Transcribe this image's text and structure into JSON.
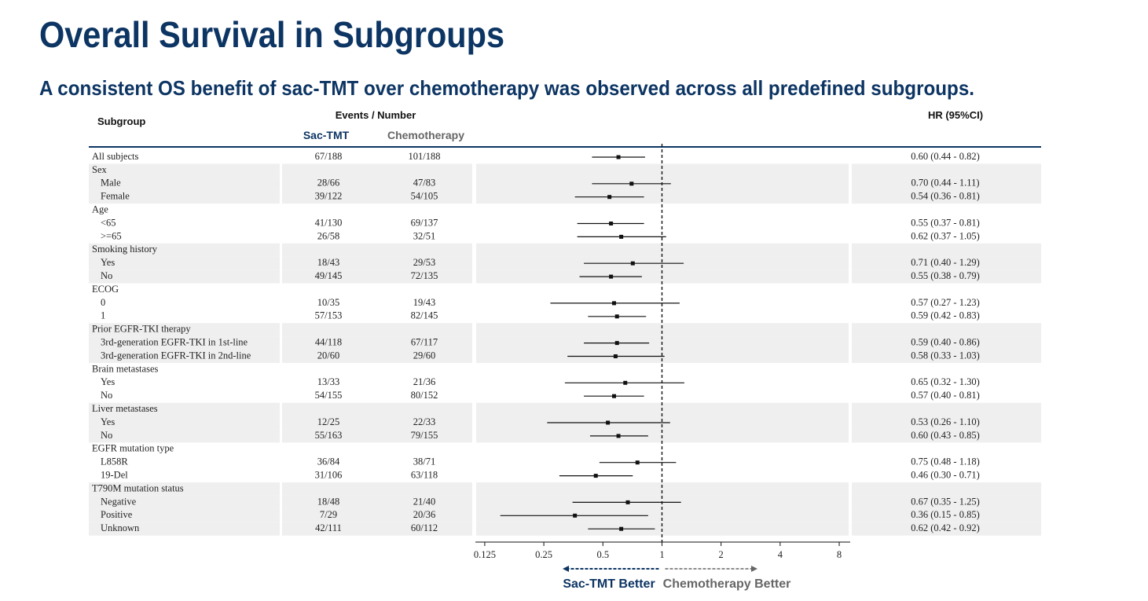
{
  "chart_data": {
    "type": "forest",
    "title": "Overall Survival in Subgroups",
    "subtitle": "A consistent OS benefit of sac-TMT over chemotherapy was observed across all predefined subgroups.",
    "headers": {
      "subgroup": "Subgroup",
      "events": "Events / Number",
      "sac": "Sac-TMT",
      "chemo": "Chemotherapy",
      "hr": "HR (95%CI)"
    },
    "categories": [
      "All subjects",
      "Sex",
      "Male",
      "Female",
      "Age",
      "<65",
      ">=65",
      "Smoking history",
      "Yes",
      "No",
      "ECOG",
      "0",
      "1",
      "Prior EGFR-TKI therapy",
      "3rd-generation EGFR-TKI in 1st-line",
      "3rd-generation EGFR-TKI in 2nd-line",
      "Brain metastases",
      "Yes",
      "No",
      "Liver metastases",
      "Yes",
      "No",
      "EGFR mutation type",
      "L858R",
      "19-Del",
      "T790M mutation status",
      "Negative",
      "Positive",
      "Unknown"
    ],
    "levels": [
      0,
      0,
      1,
      1,
      0,
      1,
      1,
      0,
      1,
      1,
      0,
      1,
      1,
      0,
      1,
      1,
      0,
      1,
      1,
      0,
      1,
      1,
      0,
      1,
      1,
      0,
      1,
      1,
      1
    ],
    "sac_events": [
      "67/188",
      null,
      "28/66",
      "39/122",
      null,
      "41/130",
      "26/58",
      null,
      "18/43",
      "49/145",
      null,
      "10/35",
      "57/153",
      null,
      "44/118",
      "20/60",
      null,
      "13/33",
      "54/155",
      null,
      "12/25",
      "55/163",
      null,
      "36/84",
      "31/106",
      null,
      "18/48",
      "7/29",
      "42/111"
    ],
    "chemo_events": [
      "101/188",
      null,
      "47/83",
      "54/105",
      null,
      "69/137",
      "32/51",
      null,
      "29/53",
      "72/135",
      null,
      "19/43",
      "82/145",
      null,
      "67/117",
      "29/60",
      null,
      "21/36",
      "80/152",
      null,
      "22/33",
      "79/155",
      null,
      "38/71",
      "63/118",
      null,
      "21/40",
      "20/36",
      "60/112"
    ],
    "values": [
      0.6,
      null,
      0.7,
      0.54,
      null,
      0.55,
      0.62,
      null,
      0.71,
      0.55,
      null,
      0.57,
      0.59,
      null,
      0.59,
      0.58,
      null,
      0.65,
      0.57,
      null,
      0.53,
      0.6,
      null,
      0.75,
      0.46,
      null,
      0.67,
      0.36,
      0.62
    ],
    "lower": [
      0.44,
      null,
      0.44,
      0.36,
      null,
      0.37,
      0.37,
      null,
      0.4,
      0.38,
      null,
      0.27,
      0.42,
      null,
      0.4,
      0.33,
      null,
      0.32,
      0.4,
      null,
      0.26,
      0.43,
      null,
      0.48,
      0.3,
      null,
      0.35,
      0.15,
      0.42
    ],
    "upper": [
      0.82,
      null,
      1.11,
      0.81,
      null,
      0.81,
      1.05,
      null,
      1.29,
      0.79,
      null,
      1.23,
      0.83,
      null,
      0.86,
      1.03,
      null,
      1.3,
      0.81,
      null,
      1.1,
      0.85,
      null,
      1.18,
      0.71,
      null,
      1.25,
      0.85,
      0.92
    ],
    "value_labels": [
      "0.60 (0.44 - 0.82)",
      null,
      "0.70 (0.44 - 1.11)",
      "0.54 (0.36 - 0.81)",
      null,
      "0.55 (0.37 - 0.81)",
      "0.62 (0.37 - 1.05)",
      null,
      "0.71 (0.40 - 1.29)",
      "0.55 (0.38 - 0.79)",
      null,
      "0.57 (0.27 - 1.23)",
      "0.59 (0.42 - 0.83)",
      null,
      "0.59 (0.40 - 0.86)",
      "0.58 (0.33 - 1.03)",
      null,
      "0.65 (0.32 - 1.30)",
      "0.57 (0.40 - 0.81)",
      null,
      "0.53 (0.26 - 1.10)",
      "0.60 (0.43 - 0.85)",
      null,
      "0.75 (0.48 - 1.18)",
      "0.46 (0.30 - 0.71)",
      null,
      "0.67 (0.35 - 1.25)",
      "0.36 (0.15 - 0.85)",
      "0.62 (0.42 - 0.92)"
    ],
    "xlim": [
      0.112,
      9.1
    ],
    "xticks": [
      0.125,
      0.25,
      0.5,
      1,
      2,
      4,
      8
    ],
    "log_x": true,
    "reference_line": 1,
    "arrow_labels": [
      "Sac-TMT Better",
      "Chemotherapy Better"
    ],
    "colors": {
      "title": "#0d3563",
      "sac": "#0d3563",
      "chemo": "#666666",
      "band": "#efefef",
      "marker": "#111111"
    }
  }
}
